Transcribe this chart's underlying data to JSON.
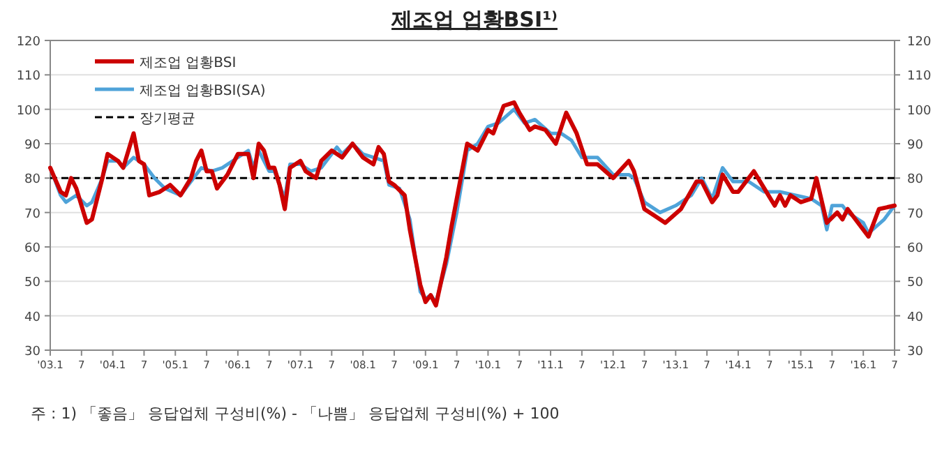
{
  "chart_data": {
    "type": "line",
    "title": "제조업 업황BSI¹⁾",
    "annotations": [
      "주 : 1) 「좋음」 응답업체 구성비(%) - 「나쁨」 응답업체 구성비(%) + 100"
    ],
    "series": [
      {
        "name": "제조업 업황BSI",
        "color": "#cc0000",
        "x": [
          "2003-01",
          "2003-03",
          "2003-04",
          "2003-05",
          "2003-06",
          "2003-08",
          "2003-09",
          "2003-11",
          "2003-12",
          "2004-02",
          "2004-03",
          "2004-05",
          "2004-06",
          "2004-07",
          "2004-08",
          "2004-10",
          "2004-12",
          "2005-02",
          "2005-04",
          "2005-05",
          "2005-06",
          "2005-07",
          "2005-08",
          "2005-09",
          "2005-11",
          "2006-01",
          "2006-03",
          "2006-04",
          "2006-05",
          "2006-06",
          "2006-07",
          "2006-08",
          "2006-09",
          "2006-10",
          "2006-11",
          "2007-01",
          "2007-02",
          "2007-04",
          "2007-05",
          "2007-07",
          "2007-09",
          "2007-11",
          "2008-01",
          "2008-03",
          "2008-04",
          "2008-05",
          "2008-06",
          "2008-07",
          "2008-09",
          "2008-10",
          "2008-12",
          "2009-01",
          "2009-02",
          "2009-03",
          "2009-05",
          "2009-06",
          "2009-09",
          "2009-11",
          "2010-01",
          "2010-02",
          "2010-04",
          "2010-06",
          "2010-07",
          "2010-09",
          "2010-10",
          "2010-12",
          "2011-02",
          "2011-04",
          "2011-06",
          "2011-08",
          "2011-10",
          "2012-01",
          "2012-04",
          "2012-05",
          "2012-07",
          "2012-09",
          "2012-11",
          "2013-02",
          "2013-05",
          "2013-06",
          "2013-08",
          "2013-09",
          "2013-10",
          "2013-12",
          "2014-01",
          "2014-04",
          "2014-06",
          "2014-08",
          "2014-09",
          "2014-10",
          "2014-11",
          "2015-01",
          "2015-03",
          "2015-04",
          "2015-06",
          "2015-08",
          "2015-09",
          "2015-10",
          "2015-12",
          "2016-02",
          "2016-04",
          "2016-07"
        ],
        "values": [
          83,
          76,
          75,
          80,
          77,
          67,
          68,
          80,
          87,
          85,
          83,
          93,
          85,
          84,
          75,
          76,
          78,
          75,
          80,
          85,
          88,
          82,
          82,
          77,
          81,
          87,
          87,
          80,
          90,
          88,
          83,
          83,
          78,
          71,
          83,
          85,
          82,
          80,
          85,
          88,
          86,
          90,
          86,
          84,
          89,
          87,
          79,
          78,
          75,
          65,
          49,
          44,
          46,
          43,
          57,
          66,
          90,
          88,
          94,
          93,
          101,
          102,
          99,
          94,
          95,
          94,
          90,
          99,
          93,
          84,
          84,
          80,
          85,
          82,
          71,
          69,
          67,
          71,
          79,
          79,
          73,
          75,
          81,
          76,
          76,
          82,
          77,
          72,
          75,
          72,
          75,
          73,
          74,
          80,
          67,
          70,
          68,
          71,
          67,
          63,
          71,
          72
        ]
      },
      {
        "name": "제조업 업황BSI(SA)",
        "color": "#4fa3d9",
        "x": [
          "2003-01",
          "2003-03",
          "2003-04",
          "2003-06",
          "2003-08",
          "2003-09",
          "2003-11",
          "2003-12",
          "2004-02",
          "2004-03",
          "2004-05",
          "2004-07",
          "2004-09",
          "2004-11",
          "2005-02",
          "2005-04",
          "2005-06",
          "2005-08",
          "2005-10",
          "2006-01",
          "2006-03",
          "2006-04",
          "2006-05",
          "2006-07",
          "2006-08",
          "2006-10",
          "2006-11",
          "2007-01",
          "2007-03",
          "2007-05",
          "2007-08",
          "2007-09",
          "2007-11",
          "2008-01",
          "2008-03",
          "2008-05",
          "2008-06",
          "2008-08",
          "2008-10",
          "2008-12",
          "2009-01",
          "2009-02",
          "2009-03",
          "2009-05",
          "2009-07",
          "2009-09",
          "2009-11",
          "2010-01",
          "2010-03",
          "2010-06",
          "2010-08",
          "2010-10",
          "2011-01",
          "2011-03",
          "2011-05",
          "2011-07",
          "2011-10",
          "2012-01",
          "2012-04",
          "2012-05",
          "2012-07",
          "2012-10",
          "2013-01",
          "2013-04",
          "2013-06",
          "2013-08",
          "2013-10",
          "2013-12",
          "2014-03",
          "2014-06",
          "2014-09",
          "2014-12",
          "2015-03",
          "2015-05",
          "2015-06",
          "2015-07",
          "2015-09",
          "2015-10",
          "2016-01",
          "2016-02",
          "2016-05",
          "2016-07"
        ],
        "values": [
          83,
          75,
          73,
          75,
          72,
          73,
          80,
          85,
          85,
          83,
          86,
          84,
          80,
          77,
          75,
          79,
          83,
          82,
          83,
          86,
          88,
          83,
          88,
          82,
          82,
          74,
          84,
          84,
          82,
          83,
          89,
          87,
          90,
          87,
          86,
          85,
          78,
          77,
          68,
          47,
          45,
          46,
          44,
          55,
          70,
          88,
          90,
          95,
          96,
          100,
          96,
          97,
          93,
          93,
          91,
          86,
          86,
          81,
          81,
          80,
          73,
          70,
          72,
          75,
          80,
          74,
          83,
          79,
          79,
          76,
          76,
          75,
          74,
          72,
          65,
          72,
          72,
          70,
          67,
          64,
          68,
          72
        ]
      }
    ],
    "ref_lines": [
      {
        "axis": "y",
        "value": 80,
        "label": "장기평균",
        "color": "#000000",
        "line_style": "dashed"
      }
    ],
    "xlim": [
      "2003-01",
      "2016-07"
    ],
    "xticks": [
      {
        "value": "2003-01",
        "label": "'03.1"
      },
      {
        "value": "2003-07",
        "label": "7"
      },
      {
        "value": "2004-01",
        "label": "'04.1"
      },
      {
        "value": "2004-07",
        "label": "7"
      },
      {
        "value": "2005-01",
        "label": "'05.1"
      },
      {
        "value": "2005-07",
        "label": "7"
      },
      {
        "value": "2006-01",
        "label": "'06.1"
      },
      {
        "value": "2006-07",
        "label": "7"
      },
      {
        "value": "2007-01",
        "label": "'07.1"
      },
      {
        "value": "2007-07",
        "label": "7"
      },
      {
        "value": "2008-01",
        "label": "'08.1"
      },
      {
        "value": "2008-07",
        "label": "7"
      },
      {
        "value": "2009-01",
        "label": "'09.1"
      },
      {
        "value": "2009-07",
        "label": "7"
      },
      {
        "value": "2010-01",
        "label": "'10.1"
      },
      {
        "value": "2010-07",
        "label": "7"
      },
      {
        "value": "2011-01",
        "label": "'11.1"
      },
      {
        "value": "2011-07",
        "label": "7"
      },
      {
        "value": "2012-01",
        "label": "'12.1"
      },
      {
        "value": "2012-07",
        "label": "7"
      },
      {
        "value": "2013-01",
        "label": "'13.1"
      },
      {
        "value": "2013-07",
        "label": "7"
      },
      {
        "value": "2014-01",
        "label": "'14.1"
      },
      {
        "value": "2014-07",
        "label": "7"
      },
      {
        "value": "2015-01",
        "label": "'15.1"
      },
      {
        "value": "2015-07",
        "label": "7"
      },
      {
        "value": "2016-01",
        "label": "'16.1"
      },
      {
        "value": "2016-07",
        "label": "7"
      }
    ],
    "ylim": [
      30,
      120
    ],
    "yticks": [
      30,
      40,
      50,
      60,
      70,
      80,
      90,
      100,
      110,
      120
    ],
    "y2lim": [
      30,
      120
    ],
    "y2ticks": [
      30,
      40,
      50,
      60,
      70,
      80,
      90,
      100,
      110,
      120
    ],
    "grid": "y",
    "legend": "top left",
    "marker": "none",
    "line_style": "solid"
  }
}
